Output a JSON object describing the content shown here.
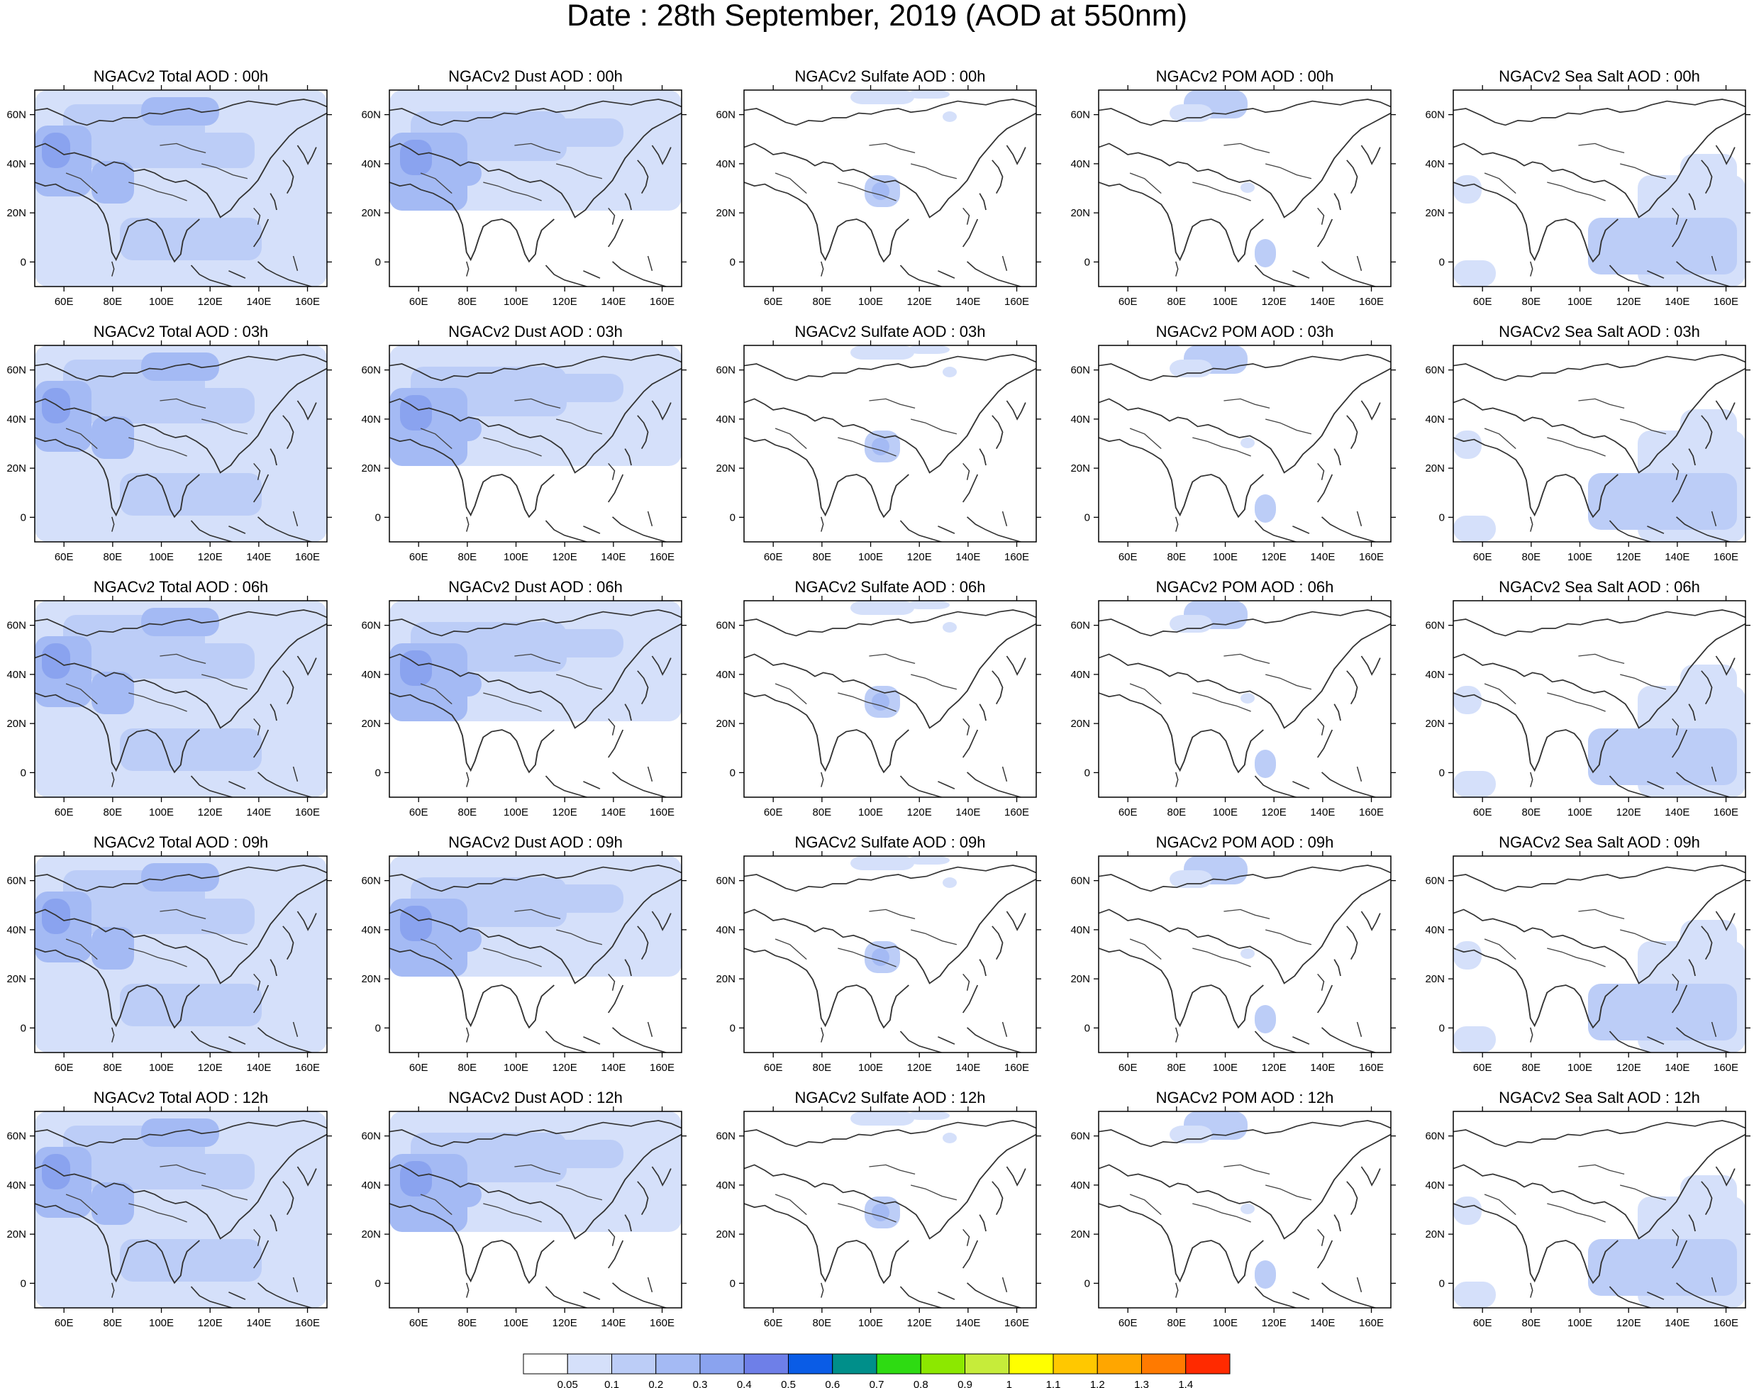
{
  "figure": {
    "title": "Date : 28th September, 2019 (AOD at 550nm)",
    "map_extent": {
      "lon_range": [
        48,
        168
      ],
      "lat_range": [
        -10,
        70
      ]
    },
    "lon_tick_labels": [
      "60E",
      "80E",
      "100E",
      "120E",
      "140E",
      "160E"
    ],
    "lat_tick_labels": [
      "60N",
      "40N",
      "20N",
      "0"
    ],
    "row_titles": [
      [
        "NGACv2 Total AOD : 00h",
        "NGACv2 Dust AOD : 00h",
        "NGACv2 Sulfate AOD : 00h",
        "NGACv2 POM AOD : 00h",
        "NGACv2 Sea Salt AOD : 00h"
      ],
      [
        "NGACv2 Total AOD : 03h",
        "NGACv2 Dust AOD : 03h",
        "NGACv2 Sulfate AOD : 03h",
        "NGACv2 POM AOD : 03h",
        "NGACv2 Sea Salt AOD : 03h"
      ],
      [
        "NGACv2 Total AOD : 06h",
        "NGACv2 Dust AOD : 06h",
        "NGACv2 Sulfate AOD : 06h",
        "NGACv2 POM AOD : 06h",
        "NGACv2 Sea Salt AOD : 06h"
      ],
      [
        "NGACv2 Total AOD : 09h",
        "NGACv2 Dust AOD : 09h",
        "NGACv2 Sulfate AOD : 09h",
        "NGACv2 POM AOD : 09h",
        "NGACv2 Sea Salt  AOD : 09h"
      ],
      [
        "NGACv2 Total AOD  : 12h",
        "NGACv2 Dust AOD : 12h",
        "NGACv2 Sulfate AOD : 12h",
        "NGACv2 POM  AOD : 12h",
        "NGACv2 Sea Salt  AOD : 12h"
      ]
    ]
  },
  "colorbar": {
    "labels": [
      "0.05",
      "0.1",
      "0.2",
      "0.3",
      "0.4",
      "0.5",
      "0.6",
      "0.7",
      "0.8",
      "0.9",
      "1",
      "1.1",
      "1.2",
      "1.3",
      "1.4"
    ],
    "colors": [
      "#ffffff",
      "#d5e0fa",
      "#bccdf7",
      "#a4baf4",
      "#8aa3ef",
      "#6e7fe8",
      "#0a5ce6",
      "#008f8a",
      "#2edb12",
      "#8ce800",
      "#c6ec3a",
      "#ffff00",
      "#ffc800",
      "#ffa600",
      "#ff7a00",
      "#ff2a00"
    ]
  }
}
